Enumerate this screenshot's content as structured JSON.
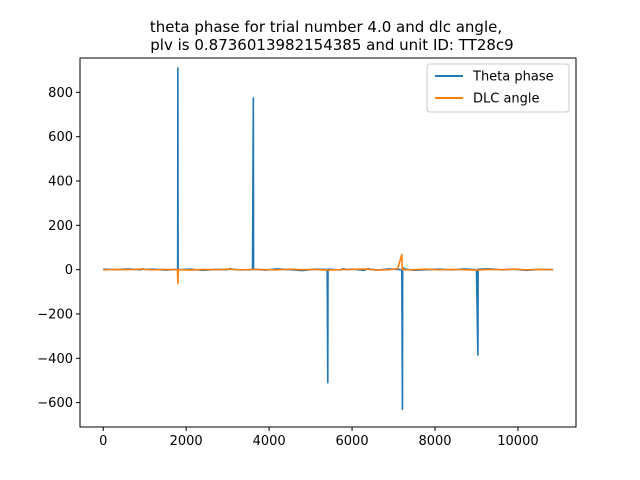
{
  "chart_data": {
    "type": "line",
    "title_line1": "theta phase for trial number 4.0 and dlc angle,",
    "title_line2": "plv is 0.8736013982154385 and unit ID: TT28c9",
    "xlabel": "",
    "ylabel": "",
    "xlim": [
      -560,
      11400
    ],
    "ylim": [
      -710,
      955
    ],
    "x_ticks": [
      0,
      2000,
      4000,
      6000,
      8000,
      10000
    ],
    "y_ticks": [
      -600,
      -400,
      -200,
      0,
      200,
      400,
      600,
      800
    ],
    "grid": false,
    "legend": "top-right",
    "colors": {
      "theta": "#1f77b4",
      "dlc": "#ff7f0e"
    },
    "series": [
      {
        "name": "Theta phase",
        "color": "#1f77b4",
        "x": [
          0,
          300,
          600,
          900,
          950,
          1000,
          1200,
          1500,
          1795,
          1800,
          1805,
          2100,
          2400,
          2700,
          3000,
          3050,
          3100,
          3300,
          3600,
          3620,
          3625,
          3630,
          3900,
          4200,
          4500,
          4800,
          5100,
          5400,
          5415,
          5420,
          5425,
          5700,
          5800,
          5850,
          6000,
          6300,
          6400,
          6450,
          6500,
          6600,
          6900,
          7200,
          7215,
          7220,
          7225,
          7300,
          7500,
          7800,
          8100,
          8400,
          8700,
          9000,
          9035,
          9040,
          9045,
          9300,
          9600,
          9900,
          10200,
          10500,
          10850
        ],
        "y": [
          2,
          0,
          3,
          -1,
          4,
          1,
          2,
          -2,
          1,
          910,
          0,
          2,
          -3,
          1,
          0,
          5,
          2,
          -1,
          0,
          775,
          0,
          2,
          -2,
          3,
          0,
          -4,
          2,
          1,
          -510,
          0,
          2,
          -1,
          4,
          0,
          2,
          -3,
          5,
          0,
          1,
          -2,
          3,
          0,
          -630,
          0,
          8,
          2,
          -3,
          0,
          2,
          -1,
          3,
          0,
          -385,
          0,
          2,
          4,
          -1,
          2,
          -3,
          1,
          0
        ]
      },
      {
        "name": "DLC angle",
        "color": "#ff7f0e",
        "x": [
          0,
          300,
          600,
          900,
          1200,
          1500,
          1790,
          1800,
          1810,
          2100,
          2400,
          2700,
          3000,
          3300,
          3600,
          3900,
          4200,
          4500,
          4800,
          5100,
          5400,
          5700,
          6000,
          6300,
          6600,
          6900,
          7100,
          7200,
          7210,
          7220,
          7300,
          7500,
          7800,
          8100,
          8400,
          8700,
          9000,
          9300,
          9600,
          9900,
          10200,
          10500,
          10850
        ],
        "y": [
          -1,
          1,
          0,
          2,
          -1,
          1,
          0,
          -62,
          0,
          -2,
          1,
          0,
          2,
          -1,
          1,
          0,
          -1,
          2,
          0,
          1,
          -2,
          0,
          1,
          3,
          -2,
          0,
          5,
          68,
          0,
          3,
          -1,
          0,
          2,
          -1,
          1,
          0,
          -2,
          1,
          0,
          2,
          -1,
          1,
          0
        ]
      }
    ]
  }
}
